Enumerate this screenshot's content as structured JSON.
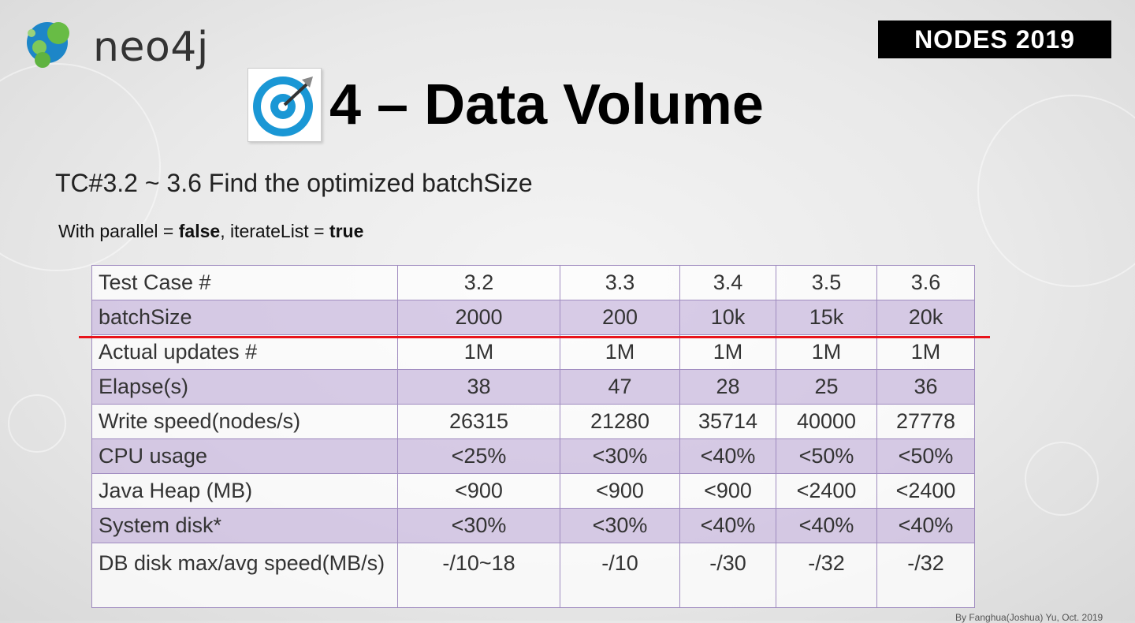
{
  "brand": {
    "name": "neo4j"
  },
  "event": {
    "label": "NODES 2019"
  },
  "slide": {
    "title": "4 – Data Volume",
    "subtitle": "TC#3.2 ~ 3.6 Find the optimized batchSize",
    "params": {
      "prefix": "With parallel = ",
      "parallel": "false",
      "middle": ", iterateList = ",
      "iterateList": "true"
    }
  },
  "table": {
    "header": [
      "Test Case #",
      "3.2",
      "3.3",
      "3.4",
      "3.5",
      "3.6"
    ],
    "rows": [
      [
        "batchSize",
        "2000",
        "200",
        "10k",
        "15k",
        "20k"
      ],
      [
        "Actual updates #",
        "1M",
        "1M",
        "1M",
        "1M",
        "1M"
      ],
      [
        "Elapse(s)",
        "38",
        "47",
        "28",
        "25",
        "36"
      ],
      [
        "Write speed(nodes/s)",
        "26315",
        "21280",
        "35714",
        "40000",
        "27778"
      ],
      [
        "CPU usage",
        "<25%",
        "<30%",
        "<40%",
        "<50%",
        "<50%"
      ],
      [
        "Java Heap (MB)",
        "<900",
        "<900",
        "<900",
        "<2400",
        "<2400"
      ],
      [
        "System disk*",
        "<30%",
        "<30%",
        "<40%",
        "<40%",
        "<40%"
      ],
      [
        "DB disk max/avg speed(MB/s)",
        "-/10~18",
        "-/10",
        "-/30",
        "-/32",
        "-/32"
      ]
    ]
  },
  "footer": {
    "credit": "By Fanghua(Joshua) Yu, Oct. 2019"
  },
  "colors": {
    "highlight_line": "#e8141b",
    "table_border": "#a08cc0",
    "table_even_row": "#cebee2"
  }
}
